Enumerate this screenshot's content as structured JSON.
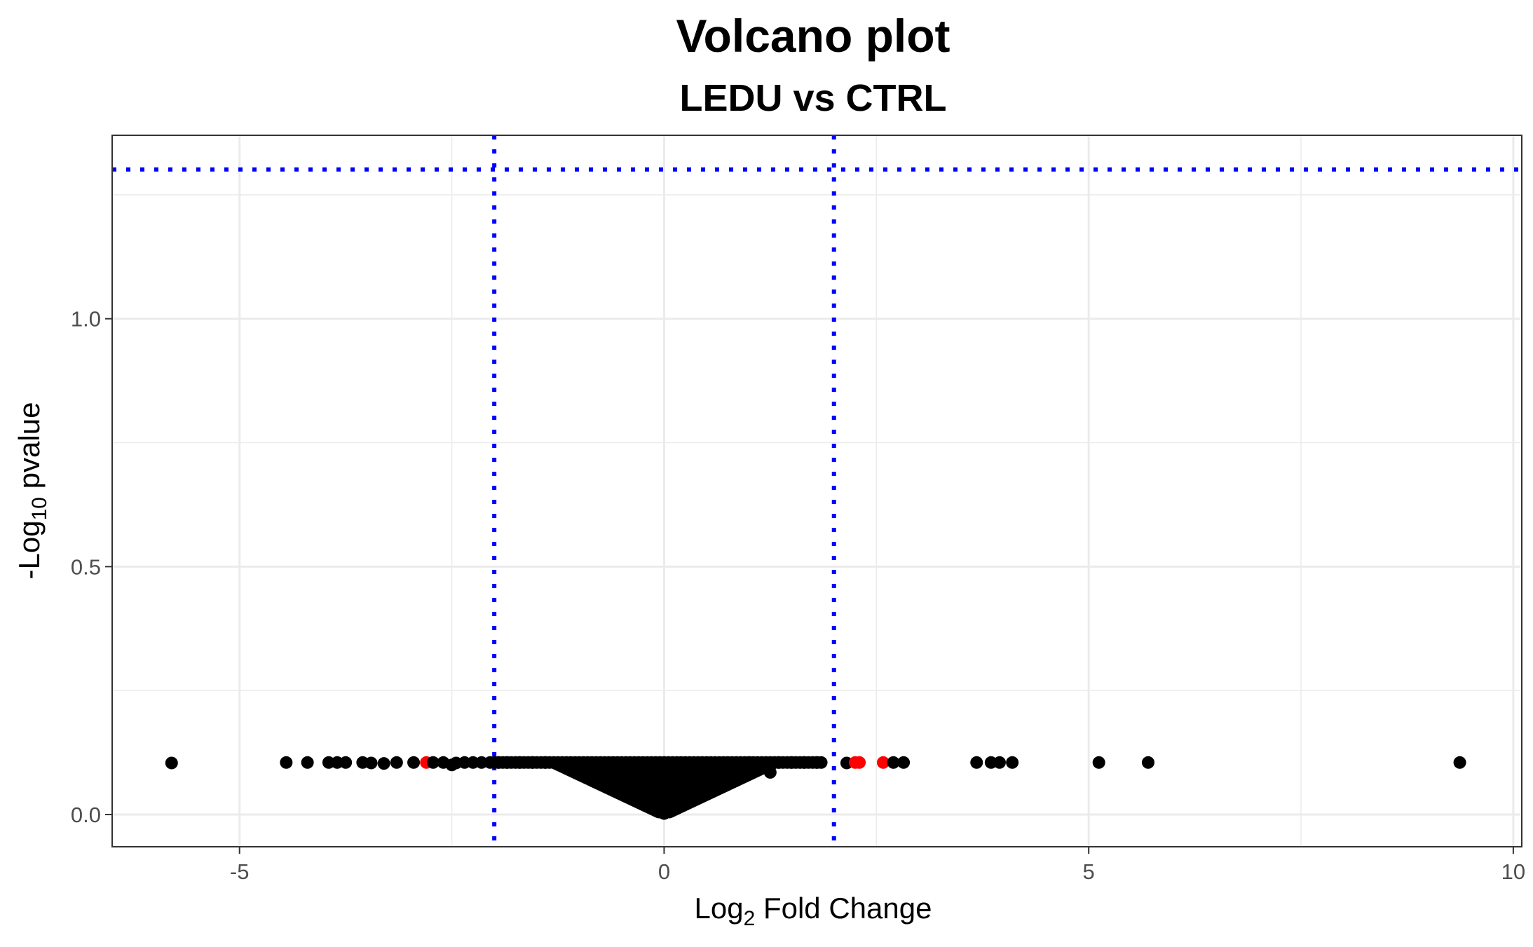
{
  "chart_data": {
    "type": "scatter",
    "title": "Volcano plot",
    "subtitle": "LEDU vs CTRL",
    "xlabel": {
      "prefix": "Log",
      "sub": "2",
      "suffix": " Fold Change"
    },
    "ylabel": {
      "prefix": "-Log",
      "sub": "10",
      "suffix": " pvalue"
    },
    "xlim": [
      -6.5,
      10.1
    ],
    "ylim": [
      -0.065,
      1.37
    ],
    "x_ticks": [
      -5,
      0,
      5,
      10
    ],
    "x_tick_labels": [
      "-5",
      "0",
      "5",
      "10"
    ],
    "y_ticks": [
      0.0,
      0.5,
      1.0
    ],
    "y_tick_labels": [
      "0.0",
      "0.5",
      "1.0"
    ],
    "grid": true,
    "thresholds": {
      "log2fc": [
        -2,
        2
      ],
      "neglog10p": 1.301,
      "color": "#0000ff",
      "style": "dotted"
    },
    "colors": {
      "not_significant": "#000000",
      "fold_change_only": "#ff0000",
      "threshold_lines": "#0000ff"
    },
    "points": [
      {
        "x": -5.8,
        "y": 0.104,
        "group": "ns"
      },
      {
        "x": -4.45,
        "y": 0.105,
        "group": "ns"
      },
      {
        "x": -4.2,
        "y": 0.105,
        "group": "ns"
      },
      {
        "x": -3.95,
        "y": 0.105,
        "group": "ns"
      },
      {
        "x": -3.85,
        "y": 0.105,
        "group": "ns"
      },
      {
        "x": -3.75,
        "y": 0.105,
        "group": "ns"
      },
      {
        "x": -3.55,
        "y": 0.105,
        "group": "ns"
      },
      {
        "x": -3.45,
        "y": 0.104,
        "group": "ns"
      },
      {
        "x": -3.3,
        "y": 0.103,
        "group": "ns"
      },
      {
        "x": -3.15,
        "y": 0.105,
        "group": "ns"
      },
      {
        "x": -2.95,
        "y": 0.105,
        "group": "ns"
      },
      {
        "x": -2.8,
        "y": 0.105,
        "group": "fc"
      },
      {
        "x": -2.72,
        "y": 0.105,
        "group": "ns"
      },
      {
        "x": -2.6,
        "y": 0.105,
        "group": "ns"
      },
      {
        "x": -2.5,
        "y": 0.1,
        "group": "ns"
      },
      {
        "x": -2.45,
        "y": 0.104,
        "group": "ns"
      },
      {
        "x": -2.35,
        "y": 0.105,
        "group": "ns"
      },
      {
        "x": -2.25,
        "y": 0.105,
        "group": "ns"
      },
      {
        "x": -2.15,
        "y": 0.105,
        "group": "ns"
      },
      {
        "x": -2.05,
        "y": 0.105,
        "group": "ns"
      },
      {
        "x": -1.95,
        "y": 0.105,
        "group": "ns"
      },
      {
        "x": -1.85,
        "y": 0.105,
        "group": "ns"
      },
      {
        "x": -1.7,
        "y": 0.105,
        "group": "ns"
      },
      {
        "x": -1.55,
        "y": 0.105,
        "group": "ns"
      },
      {
        "x": -1.4,
        "y": 0.105,
        "group": "ns"
      },
      {
        "x": -1.25,
        "y": 0.104,
        "group": "ns"
      },
      {
        "x": -1.12,
        "y": 0.1,
        "group": "ns"
      },
      {
        "x": -1.0,
        "y": 0.104,
        "group": "ns"
      },
      {
        "x": -0.9,
        "y": 0.103,
        "group": "ns"
      },
      {
        "x": -0.8,
        "y": 0.101,
        "group": "ns"
      },
      {
        "x": -0.7,
        "y": 0.097,
        "group": "ns"
      },
      {
        "x": -0.62,
        "y": 0.09,
        "group": "ns"
      },
      {
        "x": -0.55,
        "y": 0.085,
        "group": "ns"
      },
      {
        "x": -0.5,
        "y": 0.09,
        "group": "ns"
      },
      {
        "x": -0.45,
        "y": 0.07,
        "group": "ns"
      },
      {
        "x": -0.42,
        "y": 0.04,
        "group": "ns"
      },
      {
        "x": -0.35,
        "y": 0.08,
        "group": "ns"
      },
      {
        "x": -0.28,
        "y": 0.065,
        "group": "ns"
      },
      {
        "x": -0.25,
        "y": 0.095,
        "group": "ns"
      },
      {
        "x": -0.2,
        "y": 0.07,
        "group": "ns"
      },
      {
        "x": -0.15,
        "y": 0.055,
        "group": "ns"
      },
      {
        "x": -0.12,
        "y": 0.085,
        "group": "ns"
      },
      {
        "x": -0.1,
        "y": 0.04,
        "group": "ns"
      },
      {
        "x": -0.07,
        "y": 0.06,
        "group": "ns"
      },
      {
        "x": -0.05,
        "y": 0.025,
        "group": "ns"
      },
      {
        "x": -0.02,
        "y": 0.01,
        "group": "ns"
      },
      {
        "x": 0.0,
        "y": 0.002,
        "group": "ns"
      },
      {
        "x": 0.03,
        "y": 0.02,
        "group": "ns"
      },
      {
        "x": 0.06,
        "y": 0.045,
        "group": "ns"
      },
      {
        "x": 0.1,
        "y": 0.065,
        "group": "ns"
      },
      {
        "x": 0.12,
        "y": 0.012,
        "group": "ns"
      },
      {
        "x": 0.15,
        "y": 0.08,
        "group": "ns"
      },
      {
        "x": 0.2,
        "y": 0.06,
        "group": "ns"
      },
      {
        "x": 0.25,
        "y": 0.09,
        "group": "ns"
      },
      {
        "x": 0.3,
        "y": 0.075,
        "group": "ns"
      },
      {
        "x": 0.35,
        "y": 0.095,
        "group": "ns"
      },
      {
        "x": 0.42,
        "y": 0.085,
        "group": "ns"
      },
      {
        "x": 0.5,
        "y": 0.1,
        "group": "ns"
      },
      {
        "x": 0.55,
        "y": 0.09,
        "group": "ns"
      },
      {
        "x": 0.6,
        "y": 0.098,
        "group": "ns"
      },
      {
        "x": 0.7,
        "y": 0.102,
        "group": "ns"
      },
      {
        "x": 0.8,
        "y": 0.104,
        "group": "ns"
      },
      {
        "x": 0.9,
        "y": 0.104,
        "group": "ns"
      },
      {
        "x": 1.0,
        "y": 0.105,
        "group": "ns"
      },
      {
        "x": 1.1,
        "y": 0.1,
        "group": "ns"
      },
      {
        "x": 1.2,
        "y": 0.104,
        "group": "ns"
      },
      {
        "x": 1.25,
        "y": 0.085,
        "group": "ns"
      },
      {
        "x": 1.35,
        "y": 0.105,
        "group": "ns"
      },
      {
        "x": 1.5,
        "y": 0.105,
        "group": "ns"
      },
      {
        "x": 1.65,
        "y": 0.105,
        "group": "ns"
      },
      {
        "x": 1.8,
        "y": 0.105,
        "group": "ns"
      },
      {
        "x": 2.15,
        "y": 0.104,
        "group": "ns"
      },
      {
        "x": 2.25,
        "y": 0.105,
        "group": "fc"
      },
      {
        "x": 2.3,
        "y": 0.105,
        "group": "fc"
      },
      {
        "x": 2.58,
        "y": 0.105,
        "group": "fc"
      },
      {
        "x": 2.7,
        "y": 0.105,
        "group": "ns"
      },
      {
        "x": 2.82,
        "y": 0.105,
        "group": "ns"
      },
      {
        "x": 3.68,
        "y": 0.105,
        "group": "ns"
      },
      {
        "x": 3.85,
        "y": 0.105,
        "group": "ns"
      },
      {
        "x": 3.95,
        "y": 0.105,
        "group": "ns"
      },
      {
        "x": 4.1,
        "y": 0.105,
        "group": "ns"
      },
      {
        "x": 5.12,
        "y": 0.105,
        "group": "ns"
      },
      {
        "x": 5.7,
        "y": 0.105,
        "group": "ns"
      },
      {
        "x": 9.37,
        "y": 0.105,
        "group": "ns"
      }
    ]
  }
}
